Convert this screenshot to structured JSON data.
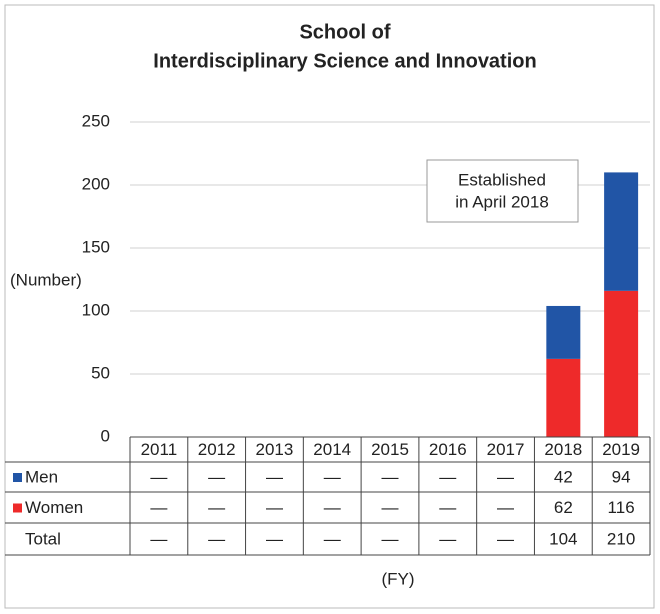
{
  "chart_data": {
    "type": "bar",
    "stacked": true,
    "title": [
      "School of",
      "Interdisciplinary Science and Innovation"
    ],
    "y_label": "(Number)",
    "x_label": "(FY)",
    "annotation": [
      "Established",
      "in April 2018"
    ],
    "categories": [
      "2011",
      "2012",
      "2013",
      "2014",
      "2015",
      "2016",
      "2017",
      "2018",
      "2019"
    ],
    "series": [
      {
        "name": "Men",
        "color": "#2155a6",
        "values": [
          null,
          null,
          null,
          null,
          null,
          null,
          null,
          42,
          94
        ],
        "value_labels": [
          "—",
          "—",
          "—",
          "—",
          "—",
          "—",
          "—",
          "42",
          "94"
        ]
      },
      {
        "name": "Women",
        "color": "#ee2a2a",
        "values": [
          null,
          null,
          null,
          null,
          null,
          null,
          null,
          62,
          116
        ],
        "value_labels": [
          "—",
          "—",
          "—",
          "—",
          "—",
          "—",
          "—",
          "62",
          "116"
        ]
      }
    ],
    "totals": {
      "name": "Total",
      "values": [
        null,
        null,
        null,
        null,
        null,
        null,
        null,
        104,
        210
      ],
      "value_labels": [
        "—",
        "—",
        "—",
        "—",
        "—",
        "—",
        "—",
        "104",
        "210"
      ]
    },
    "ylim": [
      0,
      250
    ],
    "yticks": [
      0,
      50,
      100,
      150,
      200,
      250
    ],
    "grid": true
  }
}
